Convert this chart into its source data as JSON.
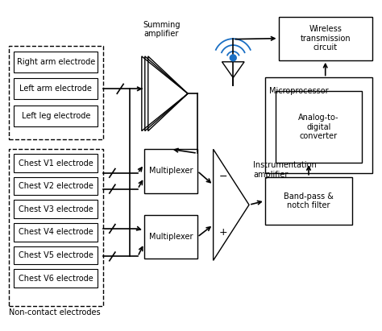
{
  "figsize": [
    4.74,
    4.11
  ],
  "dpi": 100,
  "bg_color": "#ffffff",
  "top_electrode_labels": [
    "Right arm electrode",
    "Left arm electrode",
    "Left leg electrode"
  ],
  "bottom_electrode_labels": [
    "Chest V1 electrode",
    "Chest V2 electrode",
    "Chest V3 electrode",
    "Chest V4 electrode",
    "Chest V5 electrode",
    "Chest V6 electrode"
  ],
  "non_contact_label": "Non-contact electrodes",
  "summing_amp_label": "Summing\namplifier",
  "mux1_label": "Multiplexer",
  "mux2_label": "Multiplexer",
  "inst_amp_label": "Instrumentation\namplifier",
  "bandpass_label": "Band-pass &\nnotch filter",
  "microprocessor_label": "Microprocessor",
  "adc_label": "Analog-to-\ndigital\nconverter",
  "wireless_label": "Wireless\ntransmission\ncircuit",
  "antenna_color": "#1a6fc4",
  "line_color": "#000000",
  "text_color": "#000000",
  "font_size": 7.0
}
